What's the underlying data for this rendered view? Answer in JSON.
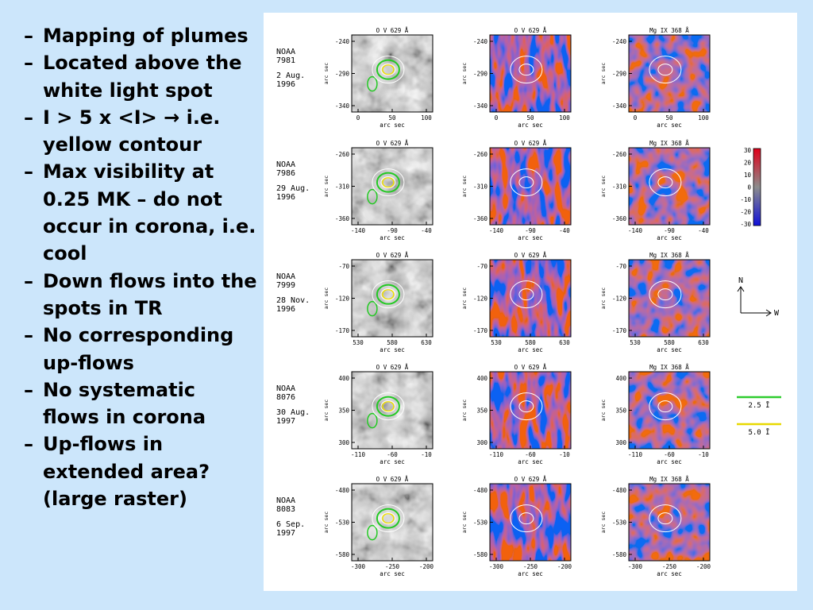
{
  "slide": {
    "bullets": [
      {
        "marker": "–",
        "text": "Mapping of plumes"
      },
      {
        "marker": "–",
        "text": "Located above the white light spot"
      },
      {
        "marker": "–",
        "text": "I > 5 x <I> → i.e. yellow contour"
      },
      {
        "marker": "–",
        "text": "Max visibility at 0.25 MK – do not occur in corona, i.e. cool"
      },
      {
        "marker": "–",
        "text": "Down flows into the spots in TR"
      },
      {
        "marker": "–",
        "text": "No corresponding up-flows"
      },
      {
        "marker": "–",
        "text": "No systematic flows in corona"
      },
      {
        "marker": "–",
        "text": "Up-flows in extended area? (large raster)"
      }
    ]
  },
  "figure": {
    "column_titles": [
      "O V 629 Å",
      "O V 629 Å",
      "Mg IX 368 Å"
    ],
    "axis_label": "arc sec",
    "rows": [
      {
        "noaa": "NOAA",
        "region": "7981",
        "date": "2 Aug.",
        "year": "1996",
        "xticks": [
          "0",
          "50",
          "100"
        ],
        "yticks": [
          "-240",
          "-290",
          "-340"
        ]
      },
      {
        "noaa": "NOAA",
        "region": "7986",
        "date": "29 Aug.",
        "year": "1996",
        "xticks": [
          "-140",
          "-90",
          "-40"
        ],
        "yticks": [
          "-260",
          "-310",
          "-360"
        ]
      },
      {
        "noaa": "NOAA",
        "region": "7999",
        "date": "28 Nov.",
        "year": "1996",
        "xticks": [
          "530",
          "580",
          "630"
        ],
        "yticks": [
          "-70",
          "-120",
          "-170"
        ]
      },
      {
        "noaa": "NOAA",
        "region": "8076",
        "date": "30 Aug.",
        "year": "1997",
        "xticks": [
          "-110",
          "-60",
          "-10"
        ],
        "yticks": [
          "400",
          "350",
          "300"
        ]
      },
      {
        "noaa": "NOAA",
        "region": "8083",
        "date": "6 Sep.",
        "year": "1997",
        "xticks": [
          "-300",
          "-250",
          "-200"
        ],
        "yticks": [
          "-480",
          "-530",
          "-580"
        ]
      }
    ],
    "colorbar": {
      "ticks": [
        "30",
        "20",
        "10",
        "0",
        "-10",
        "-20",
        "-30"
      ]
    },
    "compass": {
      "north": "N",
      "west": "W"
    },
    "contour_legend": [
      {
        "label": "2.5 Ī",
        "color": "#2ecc2e"
      },
      {
        "label": "5.0 Ī",
        "color": "#e8d800"
      }
    ]
  }
}
